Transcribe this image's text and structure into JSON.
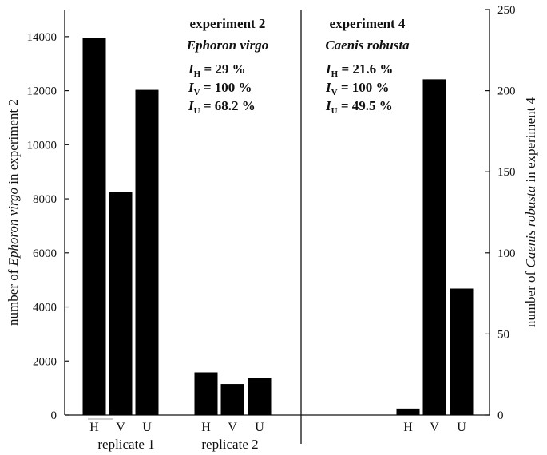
{
  "chart_data": {
    "type": "bar",
    "panels": [
      {
        "name": "experiment 2",
        "axis": "left",
        "heading": "experiment 2",
        "species": "Ephoron virgo",
        "indices": [
          {
            "sym": "I",
            "sub": "H",
            "text": " = 29 %"
          },
          {
            "sym": "I",
            "sub": "V",
            "text": " = 100 %"
          },
          {
            "sym": "I",
            "sub": "U",
            "text": " = 68.2 %"
          }
        ],
        "groups": [
          {
            "label": "replicate 1",
            "categories": [
              "H",
              "V",
              "U"
            ],
            "values": [
              13950,
              8250,
              12030
            ]
          },
          {
            "label": "replicate 2",
            "categories": [
              "H",
              "V",
              "U"
            ],
            "values": [
              1580,
              1150,
              1370
            ]
          }
        ]
      },
      {
        "name": "experiment 4",
        "axis": "right",
        "heading": "experiment 4",
        "species": "Caenis robusta",
        "indices": [
          {
            "sym": "I",
            "sub": "H",
            "text": " = 21.6 %"
          },
          {
            "sym": "I",
            "sub": "V",
            "text": " = 100 %"
          },
          {
            "sym": "I",
            "sub": "U",
            "text": " = 49.5 %"
          }
        ],
        "groups": [
          {
            "label": "",
            "categories": [
              "H",
              "V",
              "U"
            ],
            "values": [
              4,
              207,
              78
            ]
          }
        ]
      }
    ],
    "left_axis": {
      "label_prefix": "number of ",
      "label_italic": "Ephoron virgo",
      "label_suffix": " in experiment 2",
      "ylim": [
        0,
        15000
      ],
      "ticks": [
        0,
        2000,
        4000,
        6000,
        8000,
        10000,
        12000,
        14000
      ]
    },
    "right_axis": {
      "label_prefix": "number of ",
      "label_italic": "Caenis robusta",
      "label_suffix": " in experiment 4",
      "ylim": [
        0,
        250
      ],
      "ticks": [
        0,
        50,
        100,
        150,
        200,
        250
      ]
    },
    "grid": false,
    "bar_color": "#000000"
  }
}
